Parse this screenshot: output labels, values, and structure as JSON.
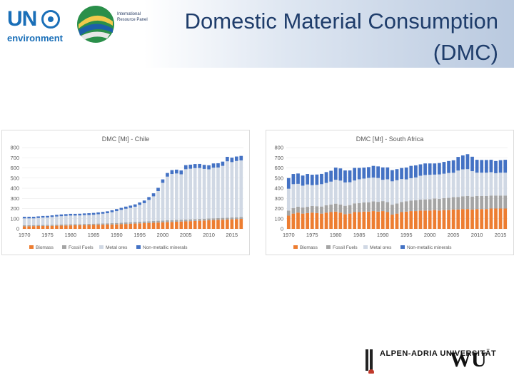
{
  "header": {
    "title": "Domestic Material Consumption (DMC)",
    "un_logo_text": "UN",
    "un_logo_sub": "environment",
    "irp_logo_text": "International Resource Panel"
  },
  "colors": {
    "biomass": "#ed7d31",
    "fossil": "#a5a5a5",
    "metal": "#d0d8e4",
    "nonmetallic": "#4472c4"
  },
  "chart_data": [
    {
      "type": "bar",
      "stacked": true,
      "title": "DMC [Mt] - Chile",
      "ylim": [
        0,
        800
      ],
      "yticks": [
        0,
        100,
        200,
        300,
        400,
        500,
        600,
        700,
        800
      ],
      "xticks": [
        "1970",
        "1975",
        "1980",
        "1985",
        "1990",
        "1995",
        "2000",
        "2005",
        "2010",
        "2015"
      ],
      "start_year": 1970,
      "categories": [
        "1970",
        "1971",
        "1972",
        "1973",
        "1974",
        "1975",
        "1976",
        "1977",
        "1978",
        "1979",
        "1980",
        "1981",
        "1982",
        "1983",
        "1984",
        "1985",
        "1986",
        "1987",
        "1988",
        "1989",
        "1990",
        "1991",
        "1992",
        "1993",
        "1994",
        "1995",
        "1996",
        "1997",
        "1998",
        "1999",
        "2000",
        "2001",
        "2002",
        "2003",
        "2004",
        "2005",
        "2006",
        "2007",
        "2008",
        "2009",
        "2010",
        "2011",
        "2012",
        "2013",
        "2014",
        "2015",
        "2016",
        "2017"
      ],
      "series": [
        {
          "name": "Biomass",
          "color_key": "biomass",
          "values": [
            25,
            26,
            27,
            28,
            28,
            29,
            30,
            31,
            32,
            33,
            34,
            35,
            36,
            37,
            38,
            39,
            40,
            41,
            42,
            43,
            44,
            46,
            48,
            50,
            52,
            54,
            56,
            58,
            60,
            62,
            64,
            66,
            68,
            70,
            72,
            74,
            76,
            78,
            80,
            82,
            84,
            86,
            88,
            90,
            92,
            94,
            96,
            98
          ]
        },
        {
          "name": "Fossil Fuels",
          "color_key": "fossil",
          "values": [
            10,
            10,
            10,
            10,
            10,
            10,
            10,
            10,
            11,
            11,
            11,
            11,
            11,
            12,
            12,
            12,
            12,
            12,
            13,
            13,
            14,
            14,
            15,
            15,
            16,
            16,
            17,
            17,
            18,
            18,
            18,
            18,
            18,
            18,
            18,
            18,
            18,
            18,
            18,
            18,
            18,
            18,
            18,
            18,
            18,
            18,
            18,
            18
          ]
        },
        {
          "name": "Metal ores",
          "color_key": "metal",
          "values": [
            68,
            67,
            66,
            69,
            73,
            73,
            77,
            81,
            82,
            84,
            86,
            85,
            85,
            86,
            86,
            88,
            92,
            96,
            99,
            108,
            117,
            127,
            135,
            142,
            150,
            166,
            180,
            210,
            242,
            292,
            371,
            430,
            454,
            457,
            447,
            495,
            498,
            502,
            501,
            490,
            484,
            498,
            498,
            512,
            555,
            545,
            554,
            558
          ]
        },
        {
          "name": "Non-metallic minerals",
          "color_key": "nonmetallic",
          "values": [
            16,
            16,
            16,
            16,
            16,
            16,
            16,
            16,
            17,
            17,
            17,
            17,
            17,
            17,
            18,
            18,
            18,
            18,
            19,
            19,
            20,
            20,
            21,
            22,
            23,
            24,
            26,
            28,
            30,
            32,
            34,
            36,
            38,
            38,
            38,
            40,
            40,
            40,
            40,
            40,
            40,
            42,
            42,
            42,
            44,
            44,
            44,
            44
          ]
        }
      ],
      "legend": [
        "Biomass",
        "Fossil Fuels",
        "Metal ores",
        "Non-metallic minerals"
      ]
    },
    {
      "type": "bar",
      "stacked": true,
      "title": "DMC [Mt] - South Africa",
      "ylim": [
        0,
        800
      ],
      "yticks": [
        0,
        100,
        200,
        300,
        400,
        500,
        600,
        700,
        800
      ],
      "xticks": [
        "1970",
        "1975",
        "1980",
        "1985",
        "1990",
        "1995",
        "2000",
        "2005",
        "2010",
        "2015"
      ],
      "start_year": 1970,
      "categories": [
        "1970",
        "1971",
        "1972",
        "1973",
        "1974",
        "1975",
        "1976",
        "1977",
        "1978",
        "1979",
        "1980",
        "1981",
        "1982",
        "1983",
        "1984",
        "1985",
        "1986",
        "1987",
        "1988",
        "1989",
        "1990",
        "1991",
        "1992",
        "1993",
        "1994",
        "1995",
        "1996",
        "1997",
        "1998",
        "1999",
        "2000",
        "2001",
        "2002",
        "2003",
        "2004",
        "2005",
        "2006",
        "2007",
        "2008",
        "2009",
        "2010",
        "2011",
        "2012",
        "2013",
        "2014",
        "2015",
        "2016"
      ],
      "series": [
        {
          "name": "Biomass",
          "color_key": "biomass",
          "values": [
            130,
            150,
            160,
            150,
            155,
            160,
            155,
            150,
            160,
            165,
            170,
            160,
            145,
            150,
            165,
            165,
            170,
            170,
            175,
            170,
            175,
            165,
            140,
            150,
            165,
            170,
            175,
            175,
            180,
            180,
            180,
            185,
            180,
            185,
            185,
            190,
            190,
            195,
            195,
            190,
            195,
            195,
            195,
            200,
            200,
            200,
            200
          ]
        },
        {
          "name": "Fossil Fuels",
          "color_key": "fossil",
          "values": [
            50,
            55,
            58,
            60,
            62,
            65,
            68,
            70,
            72,
            75,
            78,
            80,
            82,
            84,
            86,
            88,
            90,
            92,
            95,
            96,
            98,
            98,
            98,
            99,
            100,
            102,
            104,
            106,
            108,
            110,
            112,
            114,
            116,
            118,
            120,
            122,
            124,
            126,
            128,
            128,
            128,
            128,
            128,
            128,
            128,
            128,
            128
          ]
        },
        {
          "name": "Metal ores",
          "color_key": "metal",
          "values": [
            215,
            235,
            225,
            215,
            220,
            205,
            210,
            220,
            220,
            225,
            235,
            235,
            230,
            225,
            225,
            235,
            235,
            240,
            235,
            235,
            210,
            225,
            230,
            230,
            225,
            215,
            220,
            225,
            235,
            240,
            240,
            235,
            240,
            240,
            245,
            240,
            260,
            265,
            265,
            250,
            230,
            230,
            230,
            230,
            220,
            225,
            225
          ]
        },
        {
          "name": "Non-metallic minerals",
          "color_key": "nonmetallic",
          "values": [
            105,
            100,
            102,
            100,
            103,
            103,
            102,
            101,
            107,
            107,
            120,
            120,
            118,
            116,
            124,
            112,
            108,
            106,
            115,
            114,
            122,
            117,
            110,
            109,
            109,
            117,
            121,
            119,
            112,
            114,
            112,
            110,
            112,
            116,
            118,
            123,
            134,
            137,
            147,
            142,
            127,
            125,
            125,
            122,
            120,
            123,
            127
          ]
        }
      ],
      "legend": [
        "Biomass",
        "Fossil Fuels",
        "Metal ores",
        "Non-metallic minerals"
      ]
    }
  ],
  "footer": {
    "logo_left_text": "ALPEN-ADRIA UNIVERSITÄT",
    "logo_right_text": "WU"
  }
}
